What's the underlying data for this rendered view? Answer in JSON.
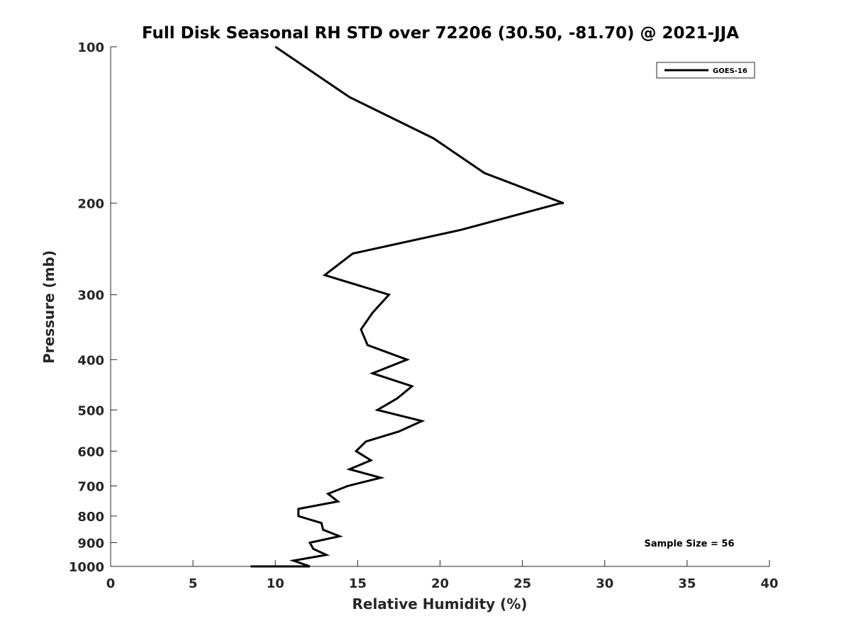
{
  "chart_data": {
    "type": "line",
    "title": "Full Disk Seasonal RH STD over 72206 (30.50, -81.70) @ 2021-JJA",
    "xlabel": "Relative Humidity (%)",
    "ylabel": "Pressure (mb)",
    "xlim": [
      0,
      40
    ],
    "ylim": [
      100,
      1000
    ],
    "yscale": "log",
    "y_reversed": true,
    "grid": false,
    "legend_position": "top-right",
    "x_ticks": [
      0,
      5,
      10,
      15,
      20,
      25,
      30,
      35,
      40
    ],
    "y_ticks": [
      100,
      200,
      300,
      400,
      500,
      600,
      700,
      800,
      900,
      1000
    ],
    "annotation": "Sample Size = 56",
    "series": [
      {
        "name": "GOES-16",
        "color": "#000000",
        "points": [
          [
            10.0,
            100
          ],
          [
            14.5,
            125
          ],
          [
            19.6,
            150
          ],
          [
            22.7,
            175
          ],
          [
            27.5,
            200
          ],
          [
            27.3,
            200
          ],
          [
            21.3,
            225
          ],
          [
            14.7,
            250
          ],
          [
            13.0,
            275
          ],
          [
            16.9,
            300
          ],
          [
            15.9,
            325
          ],
          [
            15.2,
            350
          ],
          [
            15.6,
            375
          ],
          [
            18.0,
            400
          ],
          [
            15.9,
            425
          ],
          [
            18.3,
            450
          ],
          [
            17.4,
            475
          ],
          [
            16.2,
            500
          ],
          [
            18.9,
            525
          ],
          [
            17.5,
            550
          ],
          [
            15.5,
            575
          ],
          [
            14.9,
            600
          ],
          [
            15.8,
            625
          ],
          [
            14.5,
            650
          ],
          [
            16.4,
            675
          ],
          [
            14.4,
            700
          ],
          [
            13.2,
            725
          ],
          [
            13.8,
            750
          ],
          [
            11.4,
            775
          ],
          [
            11.4,
            800
          ],
          [
            12.8,
            825
          ],
          [
            12.9,
            850
          ],
          [
            13.9,
            875
          ],
          [
            12.1,
            900
          ],
          [
            12.3,
            925
          ],
          [
            13.1,
            950
          ],
          [
            11.1,
            975
          ],
          [
            12.1,
            1000
          ],
          [
            8.9,
            1000
          ],
          [
            8.6,
            1000
          ],
          [
            9.6,
            1000
          ],
          [
            9.2,
            1000
          ],
          [
            10.0,
            1000
          ],
          [
            8.5,
            1000
          ],
          [
            9.7,
            1000
          ]
        ]
      }
    ]
  }
}
